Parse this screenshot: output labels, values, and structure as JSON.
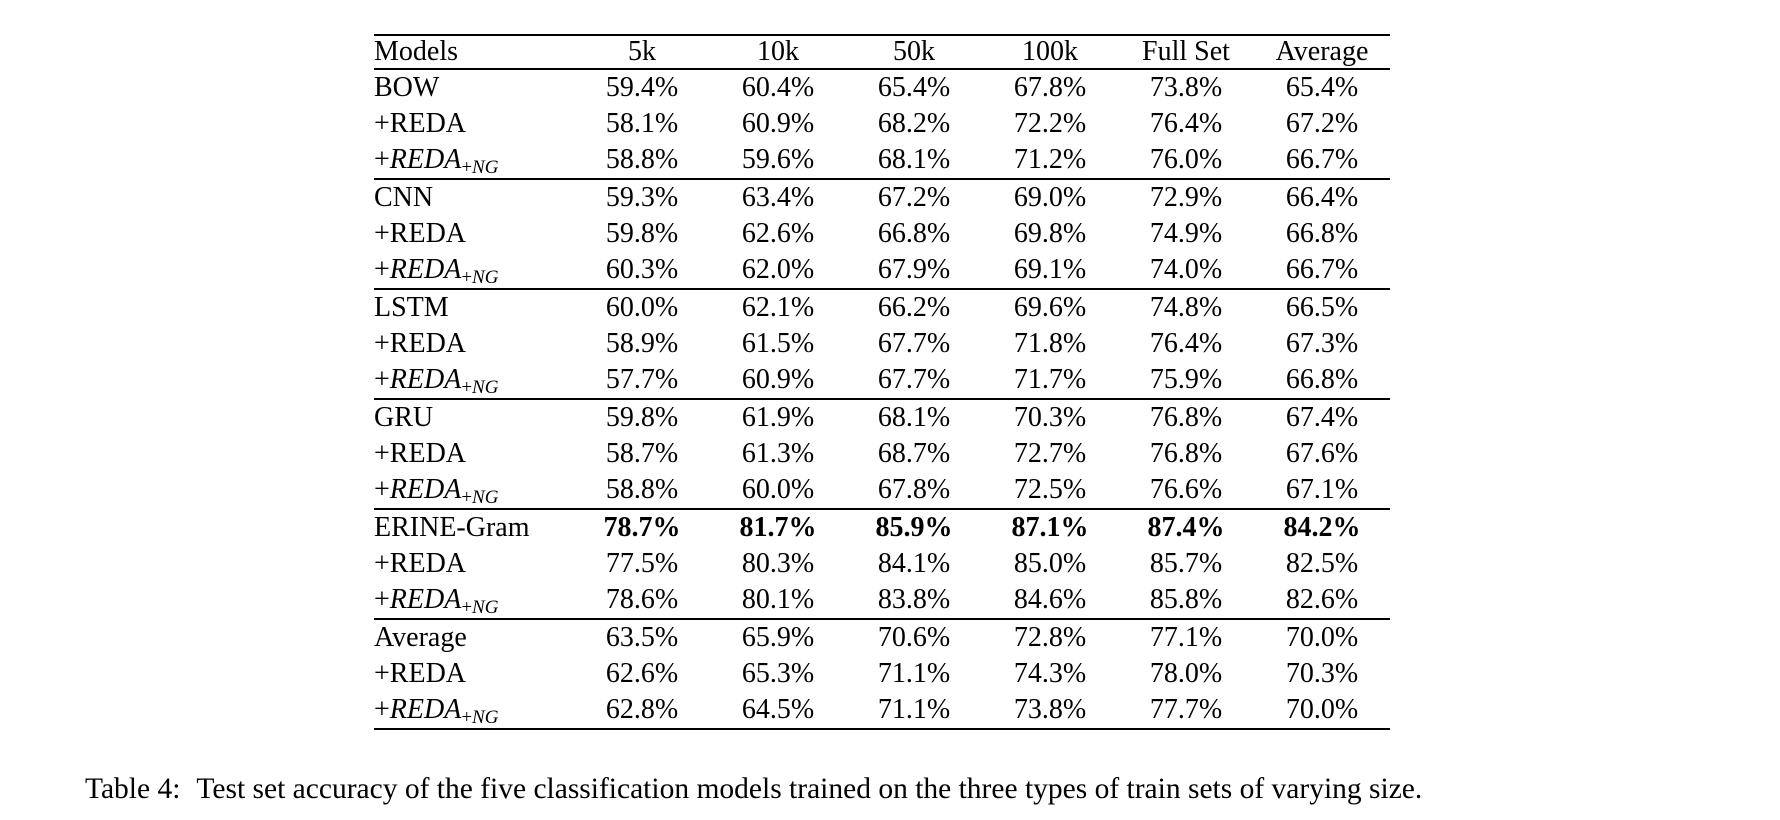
{
  "table": {
    "columns": [
      "Models",
      "5k",
      "10k",
      "50k",
      "100k",
      "Full Set",
      "Average"
    ],
    "groups": [
      {
        "rows": [
          {
            "label": {
              "type": "text",
              "text": "BOW"
            },
            "bold": false,
            "values": [
              "59.4%",
              "60.4%",
              "65.4%",
              "67.8%",
              "73.8%",
              "65.4%"
            ]
          },
          {
            "label": {
              "type": "text",
              "text": "+REDA"
            },
            "bold": false,
            "values": [
              "58.1%",
              "60.9%",
              "68.2%",
              "72.2%",
              "76.4%",
              "67.2%"
            ]
          },
          {
            "label": {
              "type": "math",
              "plus": "+",
              "main": "REDA",
              "sub_plus": "+",
              "sub": "NG"
            },
            "bold": false,
            "values": [
              "58.8%",
              "59.6%",
              "68.1%",
              "71.2%",
              "76.0%",
              "66.7%"
            ]
          }
        ]
      },
      {
        "rows": [
          {
            "label": {
              "type": "text",
              "text": "CNN"
            },
            "bold": false,
            "values": [
              "59.3%",
              "63.4%",
              "67.2%",
              "69.0%",
              "72.9%",
              "66.4%"
            ]
          },
          {
            "label": {
              "type": "text",
              "text": "+REDA"
            },
            "bold": false,
            "values": [
              "59.8%",
              "62.6%",
              "66.8%",
              "69.8%",
              "74.9%",
              "66.8%"
            ]
          },
          {
            "label": {
              "type": "math",
              "plus": "+",
              "main": "REDA",
              "sub_plus": "+",
              "sub": "NG"
            },
            "bold": false,
            "values": [
              "60.3%",
              "62.0%",
              "67.9%",
              "69.1%",
              "74.0%",
              "66.7%"
            ]
          }
        ]
      },
      {
        "rows": [
          {
            "label": {
              "type": "text",
              "text": "LSTM"
            },
            "bold": false,
            "values": [
              "60.0%",
              "62.1%",
              "66.2%",
              "69.6%",
              "74.8%",
              "66.5%"
            ]
          },
          {
            "label": {
              "type": "text",
              "text": "+REDA"
            },
            "bold": false,
            "values": [
              "58.9%",
              "61.5%",
              "67.7%",
              "71.8%",
              "76.4%",
              "67.3%"
            ]
          },
          {
            "label": {
              "type": "math",
              "plus": "+",
              "main": "REDA",
              "sub_plus": "+",
              "sub": "NG"
            },
            "bold": false,
            "values": [
              "57.7%",
              "60.9%",
              "67.7%",
              "71.7%",
              "75.9%",
              "66.8%"
            ]
          }
        ]
      },
      {
        "rows": [
          {
            "label": {
              "type": "text",
              "text": "GRU"
            },
            "bold": false,
            "values": [
              "59.8%",
              "61.9%",
              "68.1%",
              "70.3%",
              "76.8%",
              "67.4%"
            ]
          },
          {
            "label": {
              "type": "text",
              "text": "+REDA"
            },
            "bold": false,
            "values": [
              "58.7%",
              "61.3%",
              "68.7%",
              "72.7%",
              "76.8%",
              "67.6%"
            ]
          },
          {
            "label": {
              "type": "math",
              "plus": "+",
              "main": "REDA",
              "sub_plus": "+",
              "sub": "NG"
            },
            "bold": false,
            "values": [
              "58.8%",
              "60.0%",
              "67.8%",
              "72.5%",
              "76.6%",
              "67.1%"
            ]
          }
        ]
      },
      {
        "rows": [
          {
            "label": {
              "type": "text",
              "text": "ERINE-Gram"
            },
            "bold": true,
            "values": [
              "78.7%",
              "81.7%",
              "85.9%",
              "87.1%",
              "87.4%",
              "84.2%"
            ]
          },
          {
            "label": {
              "type": "text",
              "text": "+REDA"
            },
            "bold": false,
            "values": [
              "77.5%",
              "80.3%",
              "84.1%",
              "85.0%",
              "85.7%",
              "82.5%"
            ]
          },
          {
            "label": {
              "type": "math",
              "plus": "+",
              "main": "REDA",
              "sub_plus": "+",
              "sub": "NG"
            },
            "bold": false,
            "values": [
              "78.6%",
              "80.1%",
              "83.8%",
              "84.6%",
              "85.8%",
              "82.6%"
            ]
          }
        ]
      },
      {
        "rows": [
          {
            "label": {
              "type": "text",
              "text": "Average"
            },
            "bold": false,
            "values": [
              "63.5%",
              "65.9%",
              "70.6%",
              "72.8%",
              "77.1%",
              "70.0%"
            ]
          },
          {
            "label": {
              "type": "text",
              "text": "+REDA"
            },
            "bold": false,
            "values": [
              "62.6%",
              "65.3%",
              "71.1%",
              "74.3%",
              "78.0%",
              "70.3%"
            ]
          },
          {
            "label": {
              "type": "math",
              "plus": "+",
              "main": "REDA",
              "sub_plus": "+",
              "sub": "NG"
            },
            "bold": false,
            "values": [
              "62.8%",
              "64.5%",
              "71.1%",
              "73.8%",
              "77.7%",
              "70.0%"
            ]
          }
        ]
      }
    ]
  },
  "caption": {
    "label": "Table 4:",
    "text": "Test set accuracy of the five classification models trained on the three types of train sets of varying size."
  }
}
